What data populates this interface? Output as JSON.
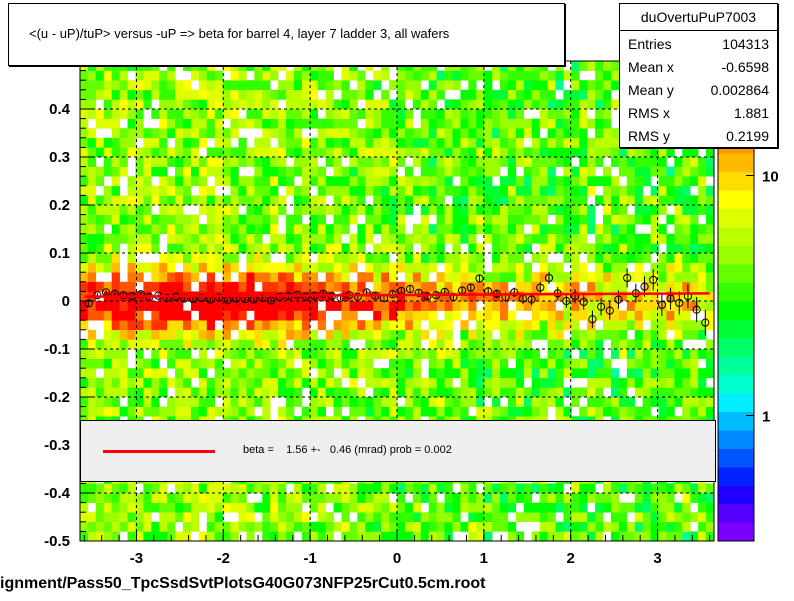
{
  "title": "<(u - uP)/tuP> versus  -uP => beta for barrel 4, layer 7 ladder 3, all wafers",
  "stats": {
    "name": "duOvertuPuP7003",
    "rows": [
      {
        "label": "Entries",
        "value": "104313"
      },
      {
        "label": "Mean x",
        "value": "-0.6598"
      },
      {
        "label": "Mean y",
        "value": "0.002864"
      },
      {
        "label": "RMS x",
        "value": "1.881"
      },
      {
        "label": "RMS y",
        "value": "0.2199"
      }
    ]
  },
  "fit_legend": {
    "text": "beta =    1.56 +-   0.46 (mrad) prob = 0.002",
    "line_color": "#ff0000"
  },
  "footer": "ignment/Pass50_TpcSsdSvtPlotsG40G073NFP25rCut0.5cm.root",
  "chart_data": {
    "type": "heatmap",
    "xlim": [
      -3.65,
      3.65
    ],
    "ylim": [
      -0.5,
      0.5
    ],
    "x_ticks": [
      "-3",
      "-2",
      "-1",
      "0",
      "1",
      "2",
      "3"
    ],
    "x_tick_values": [
      -3,
      -2,
      -1,
      0,
      1,
      2,
      3
    ],
    "y_ticks": [
      "-0.5",
      "-0.4",
      "-0.3",
      "-0.2",
      "-0.1",
      "0",
      "0.1",
      "0.2",
      "0.3",
      "0.4"
    ],
    "y_tick_values": [
      -0.5,
      -0.4,
      -0.3,
      -0.2,
      -0.1,
      0,
      0.1,
      0.2,
      0.3,
      0.4
    ],
    "color_axis_ticks": [
      "1",
      "10"
    ],
    "color_axis_tick_values": [
      1,
      10
    ],
    "color_axis_range": [
      0.3,
      30
    ],
    "grid": true,
    "fit_line": {
      "color": "#ff0000",
      "x": [
        -3.6,
        3.6
      ],
      "y": [
        0.009,
        0.016
      ]
    },
    "profile_points": [
      {
        "x": -3.55,
        "y": -0.005,
        "err": 0.006
      },
      {
        "x": -3.45,
        "y": 0.012,
        "err": 0.005
      },
      {
        "x": -3.35,
        "y": 0.018,
        "err": 0.005
      },
      {
        "x": -3.25,
        "y": 0.015,
        "err": 0.005
      },
      {
        "x": -3.15,
        "y": 0.012,
        "err": 0.005
      },
      {
        "x": -3.05,
        "y": 0.01,
        "err": 0.005
      },
      {
        "x": -2.95,
        "y": 0.014,
        "err": 0.005
      },
      {
        "x": -2.85,
        "y": 0.008,
        "err": 0.005
      },
      {
        "x": -2.75,
        "y": 0.011,
        "err": 0.005
      },
      {
        "x": -2.65,
        "y": 0.006,
        "err": 0.005
      },
      {
        "x": -2.55,
        "y": 0.009,
        "err": 0.005
      },
      {
        "x": -2.45,
        "y": 0.005,
        "err": 0.005
      },
      {
        "x": -2.35,
        "y": 0.004,
        "err": 0.005
      },
      {
        "x": -2.25,
        "y": 0.006,
        "err": 0.005
      },
      {
        "x": -2.15,
        "y": 0.003,
        "err": 0.005
      },
      {
        "x": -2.05,
        "y": 0.007,
        "err": 0.005
      },
      {
        "x": -1.95,
        "y": 0.002,
        "err": 0.005
      },
      {
        "x": -1.85,
        "y": 0.005,
        "err": 0.005
      },
      {
        "x": -1.75,
        "y": 0.004,
        "err": 0.005
      },
      {
        "x": -1.65,
        "y": 0.003,
        "err": 0.005
      },
      {
        "x": -1.55,
        "y": 0.006,
        "err": 0.005
      },
      {
        "x": -1.45,
        "y": 0.001,
        "err": 0.005
      },
      {
        "x": -1.35,
        "y": 0.008,
        "err": 0.005
      },
      {
        "x": -1.25,
        "y": 0.01,
        "err": 0.005
      },
      {
        "x": -1.15,
        "y": 0.013,
        "err": 0.005
      },
      {
        "x": -1.05,
        "y": 0.009,
        "err": 0.005
      },
      {
        "x": -0.95,
        "y": 0.011,
        "err": 0.005
      },
      {
        "x": -0.85,
        "y": 0.015,
        "err": 0.005
      },
      {
        "x": -0.75,
        "y": 0.01,
        "err": 0.005
      },
      {
        "x": -0.65,
        "y": 0.007,
        "err": 0.005
      },
      {
        "x": -0.55,
        "y": 0.012,
        "err": 0.005
      },
      {
        "x": -0.45,
        "y": 0.009,
        "err": 0.005
      },
      {
        "x": -0.35,
        "y": 0.018,
        "err": 0.006
      },
      {
        "x": -0.25,
        "y": 0.011,
        "err": 0.006
      },
      {
        "x": -0.15,
        "y": 0.006,
        "err": 0.006
      },
      {
        "x": -0.05,
        "y": 0.014,
        "err": 0.006
      },
      {
        "x": 0.05,
        "y": 0.021,
        "err": 0.006
      },
      {
        "x": 0.15,
        "y": 0.025,
        "err": 0.006
      },
      {
        "x": 0.25,
        "y": 0.017,
        "err": 0.006
      },
      {
        "x": 0.35,
        "y": 0.01,
        "err": 0.006
      },
      {
        "x": 0.45,
        "y": 0.012,
        "err": 0.007
      },
      {
        "x": 0.55,
        "y": 0.019,
        "err": 0.007
      },
      {
        "x": 0.65,
        "y": 0.008,
        "err": 0.007
      },
      {
        "x": 0.75,
        "y": 0.022,
        "err": 0.007
      },
      {
        "x": 0.85,
        "y": 0.028,
        "err": 0.008
      },
      {
        "x": 0.95,
        "y": 0.047,
        "err": 0.008
      },
      {
        "x": 1.05,
        "y": 0.02,
        "err": 0.009
      },
      {
        "x": 1.15,
        "y": 0.015,
        "err": 0.009
      },
      {
        "x": 1.25,
        "y": 0.008,
        "err": 0.01
      },
      {
        "x": 1.35,
        "y": 0.018,
        "err": 0.01
      },
      {
        "x": 1.45,
        "y": 0.005,
        "err": 0.011
      },
      {
        "x": 1.55,
        "y": 0.003,
        "err": 0.012
      },
      {
        "x": 1.65,
        "y": 0.028,
        "err": 0.012
      },
      {
        "x": 1.75,
        "y": 0.048,
        "err": 0.013
      },
      {
        "x": 1.85,
        "y": 0.016,
        "err": 0.013
      },
      {
        "x": 1.95,
        "y": 0.0,
        "err": 0.014
      },
      {
        "x": 2.05,
        "y": 0.01,
        "err": 0.015
      },
      {
        "x": 2.15,
        "y": -0.002,
        "err": 0.016
      },
      {
        "x": 2.25,
        "y": -0.038,
        "err": 0.018
      },
      {
        "x": 2.35,
        "y": -0.012,
        "err": 0.018
      },
      {
        "x": 2.45,
        "y": -0.02,
        "err": 0.019
      },
      {
        "x": 2.55,
        "y": 0.003,
        "err": 0.019
      },
      {
        "x": 2.65,
        "y": 0.048,
        "err": 0.02
      },
      {
        "x": 2.75,
        "y": 0.016,
        "err": 0.02
      },
      {
        "x": 2.85,
        "y": 0.03,
        "err": 0.021
      },
      {
        "x": 2.95,
        "y": 0.044,
        "err": 0.022
      },
      {
        "x": 3.05,
        "y": -0.008,
        "err": 0.023
      },
      {
        "x": 3.15,
        "y": 0.005,
        "err": 0.023
      },
      {
        "x": 3.25,
        "y": -0.004,
        "err": 0.024
      },
      {
        "x": 3.35,
        "y": 0.01,
        "err": 0.025
      },
      {
        "x": 3.45,
        "y": -0.018,
        "err": 0.026
      },
      {
        "x": 3.55,
        "y": -0.045,
        "err": 0.027
      }
    ]
  }
}
